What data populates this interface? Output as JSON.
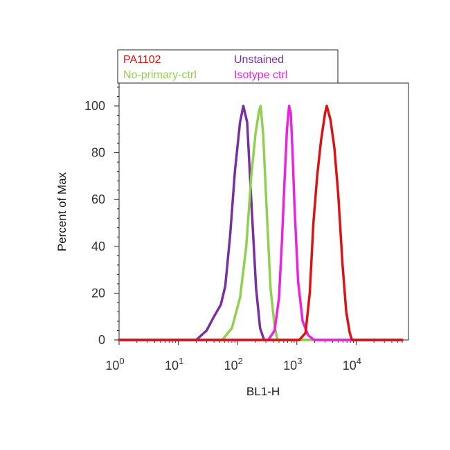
{
  "chart_data": {
    "type": "line",
    "title": "",
    "xlabel": "BL1-H",
    "ylabel": "Percent of Max",
    "x_scale": "log",
    "xlim": [
      1,
      60000
    ],
    "ylim": [
      0,
      110
    ],
    "grid": false,
    "legend_position": "top",
    "y_ticks": [
      "0",
      "20",
      "40",
      "60",
      "80",
      "100"
    ],
    "x_ticks": [
      {
        "base": "10",
        "exp": "0"
      },
      {
        "base": "10",
        "exp": "1"
      },
      {
        "base": "10",
        "exp": "2"
      },
      {
        "base": "10",
        "exp": "3"
      },
      {
        "base": "10",
        "exp": "4"
      }
    ],
    "series": [
      {
        "name": "PA1102",
        "color": "#dd1111",
        "x": [
          1,
          1100,
          1400,
          1650,
          1900,
          2200,
          2550,
          3000,
          3200,
          3700,
          4300,
          5000,
          5900,
          6800,
          7800,
          8500,
          60000
        ],
        "y": [
          0,
          0,
          3,
          20,
          50,
          70,
          85,
          97,
          100,
          94,
          82,
          62,
          32,
          12,
          3,
          0,
          0
        ]
      },
      {
        "name": "Unstained",
        "color": "#7a2fa0",
        "x": [
          1,
          20,
          30,
          40,
          52,
          62,
          75,
          90,
          110,
          125,
          145,
          170,
          205,
          240,
          280,
          60000
        ],
        "y": [
          0,
          0,
          4,
          10,
          15,
          23,
          45,
          72,
          93,
          100,
          93,
          60,
          22,
          5,
          0,
          0
        ]
      },
      {
        "name": "No-primary-ctrl",
        "color": "#8fd14f",
        "x": [
          1,
          55,
          80,
          110,
          140,
          170,
          200,
          230,
          245,
          270,
          310,
          360,
          420,
          470,
          60000
        ],
        "y": [
          0,
          0,
          5,
          18,
          40,
          70,
          88,
          98,
          100,
          88,
          55,
          22,
          6,
          0,
          0
        ]
      },
      {
        "name": "Isotype ctrl",
        "color": "#ee22dd",
        "x": [
          1,
          330,
          420,
          500,
          560,
          620,
          680,
          740,
          790,
          840,
          920,
          1050,
          1250,
          1550,
          1950,
          60000
        ],
        "y": [
          0,
          0,
          4,
          18,
          42,
          68,
          90,
          100,
          97,
          82,
          55,
          25,
          8,
          2,
          0,
          0
        ]
      }
    ]
  }
}
